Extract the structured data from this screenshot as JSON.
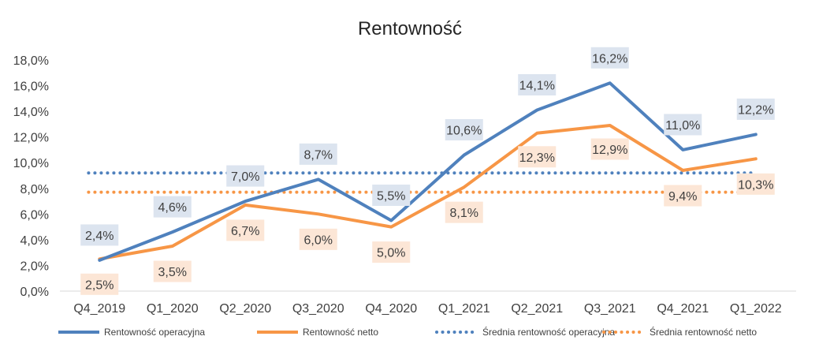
{
  "chart_data": {
    "type": "line",
    "title": "Rentowność",
    "categories": [
      "Q4_2019",
      "Q1_2020",
      "Q2_2020",
      "Q3_2020",
      "Q4_2020",
      "Q1_2021",
      "Q2_2021",
      "Q3_2021",
      "Q4_2021",
      "Q1_2022"
    ],
    "y_tick_labels": [
      "0,0%",
      "2,0%",
      "4,0%",
      "6,0%",
      "8,0%",
      "10,0%",
      "12,0%",
      "14,0%",
      "16,0%",
      "18,0%"
    ],
    "ylim": [
      0,
      18
    ],
    "grid": false,
    "legend_position": "bottom",
    "series": [
      {
        "name": "Rentowność operacyjna",
        "values": [
          2.4,
          4.6,
          7.0,
          8.7,
          5.5,
          10.6,
          14.1,
          16.2,
          11.0,
          12.2
        ],
        "labels": [
          "2,4%",
          "4,6%",
          "7,0%",
          "8,7%",
          "5,5%",
          "10,6%",
          "14,1%",
          "16,2%",
          "11,0%",
          "12,2%"
        ],
        "color": "#4F81BD",
        "style": "solid",
        "label_bg": "#DCE4EF"
      },
      {
        "name": "Rentowność netto",
        "values": [
          2.5,
          3.5,
          6.7,
          6.0,
          5.0,
          8.1,
          12.3,
          12.9,
          9.4,
          10.3
        ],
        "labels": [
          "2,5%",
          "3,5%",
          "6,7%",
          "6,0%",
          "5,0%",
          "8,1%",
          "12,3%",
          "12,9%",
          "9,4%",
          "10,3%"
        ],
        "color": "#F79646",
        "style": "solid",
        "label_bg": "#FCE6D6"
      },
      {
        "name": "Średnia rentowność operacyjna",
        "values": [
          9.2,
          9.2,
          9.2,
          9.2,
          9.2,
          9.2,
          9.2,
          9.2,
          9.2,
          9.2
        ],
        "color": "#4F81BD",
        "style": "dotted"
      },
      {
        "name": "Średnia rentowność netto",
        "values": [
          7.7,
          7.7,
          7.7,
          7.7,
          7.7,
          7.7,
          7.7,
          7.7,
          7.7,
          7.7
        ],
        "color": "#F79646",
        "style": "dotted"
      }
    ]
  }
}
